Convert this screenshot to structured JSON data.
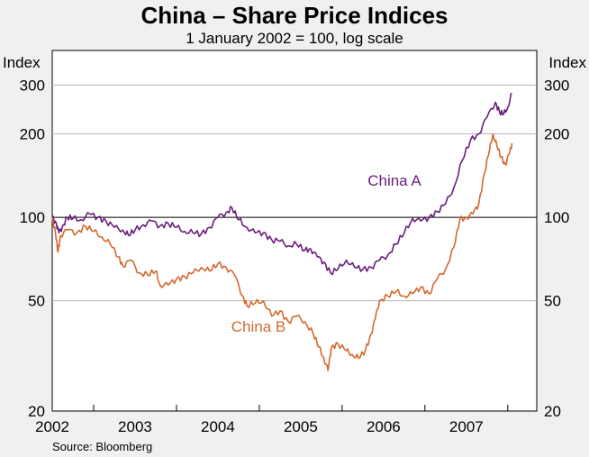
{
  "chart_data": {
    "type": "line",
    "title": "China – Share Price Indices",
    "subtitle": "1 January 2002 = 100, log scale",
    "ylabel_left": "Index",
    "ylabel_right": "Index",
    "yscale": "log",
    "ylim": [
      20,
      400
    ],
    "y_ticks": [
      20,
      50,
      100,
      200,
      300
    ],
    "xlim": [
      2002.0,
      2007.85
    ],
    "x_ticks": [
      "2002",
      "2003",
      "2004",
      "2005",
      "2006",
      "2007"
    ],
    "source": "Source: Bloomberg",
    "series": [
      {
        "name": "China A",
        "color": "#6a1f7a",
        "points": [
          [
            2002.0,
            100
          ],
          [
            2002.05,
            95
          ],
          [
            2002.08,
            88
          ],
          [
            2002.12,
            92
          ],
          [
            2002.18,
            100
          ],
          [
            2002.25,
            99
          ],
          [
            2002.35,
            98
          ],
          [
            2002.45,
            103
          ],
          [
            2002.55,
            100
          ],
          [
            2002.65,
            97
          ],
          [
            2002.75,
            92
          ],
          [
            2002.85,
            90
          ],
          [
            2002.92,
            86
          ],
          [
            2003.0,
            90
          ],
          [
            2003.1,
            94
          ],
          [
            2003.2,
            97
          ],
          [
            2003.3,
            93
          ],
          [
            2003.4,
            95
          ],
          [
            2003.5,
            92
          ],
          [
            2003.6,
            89
          ],
          [
            2003.7,
            88
          ],
          [
            2003.8,
            87
          ],
          [
            2003.9,
            92
          ],
          [
            2004.0,
            100
          ],
          [
            2004.1,
            104
          ],
          [
            2004.17,
            108
          ],
          [
            2004.25,
            98
          ],
          [
            2004.35,
            92
          ],
          [
            2004.45,
            88
          ],
          [
            2004.55,
            88
          ],
          [
            2004.65,
            83
          ],
          [
            2004.75,
            82
          ],
          [
            2004.85,
            79
          ],
          [
            2004.95,
            80
          ],
          [
            2005.05,
            76
          ],
          [
            2005.12,
            77
          ],
          [
            2005.2,
            72
          ],
          [
            2005.28,
            69
          ],
          [
            2005.36,
            63
          ],
          [
            2005.45,
            65
          ],
          [
            2005.55,
            70
          ],
          [
            2005.65,
            66
          ],
          [
            2005.75,
            65
          ],
          [
            2005.85,
            66
          ],
          [
            2005.95,
            70
          ],
          [
            2006.05,
            73
          ],
          [
            2006.15,
            80
          ],
          [
            2006.25,
            88
          ],
          [
            2006.35,
            99
          ],
          [
            2006.45,
            97
          ],
          [
            2006.55,
            100
          ],
          [
            2006.65,
            105
          ],
          [
            2006.75,
            112
          ],
          [
            2006.85,
            128
          ],
          [
            2006.95,
            160
          ],
          [
            2007.05,
            190
          ],
          [
            2007.15,
            200
          ],
          [
            2007.25,
            230
          ],
          [
            2007.35,
            260
          ],
          [
            2007.4,
            240
          ],
          [
            2007.45,
            235
          ],
          [
            2007.5,
            250
          ],
          [
            2007.55,
            280
          ]
        ]
      },
      {
        "name": "China B",
        "color": "#d4692e",
        "points": [
          [
            2002.0,
            100
          ],
          [
            2002.04,
            87
          ],
          [
            2002.07,
            75
          ],
          [
            2002.1,
            86
          ],
          [
            2002.18,
            90
          ],
          [
            2002.3,
            88
          ],
          [
            2002.4,
            93
          ],
          [
            2002.5,
            89
          ],
          [
            2002.6,
            85
          ],
          [
            2002.7,
            80
          ],
          [
            2002.8,
            72
          ],
          [
            2002.85,
            67
          ],
          [
            2002.95,
            70
          ],
          [
            2003.05,
            63
          ],
          [
            2003.15,
            62
          ],
          [
            2003.25,
            64
          ],
          [
            2003.3,
            57
          ],
          [
            2003.4,
            57
          ],
          [
            2003.5,
            60
          ],
          [
            2003.6,
            61
          ],
          [
            2003.7,
            63
          ],
          [
            2003.8,
            66
          ],
          [
            2003.9,
            64
          ],
          [
            2004.0,
            68
          ],
          [
            2004.1,
            66
          ],
          [
            2004.2,
            62
          ],
          [
            2004.3,
            52
          ],
          [
            2004.35,
            48
          ],
          [
            2004.45,
            49
          ],
          [
            2004.55,
            50
          ],
          [
            2004.65,
            44
          ],
          [
            2004.75,
            46
          ],
          [
            2004.85,
            42
          ],
          [
            2004.95,
            44
          ],
          [
            2005.05,
            42
          ],
          [
            2005.15,
            38
          ],
          [
            2005.22,
            34
          ],
          [
            2005.28,
            31
          ],
          [
            2005.33,
            28
          ],
          [
            2005.37,
            34
          ],
          [
            2005.45,
            35
          ],
          [
            2005.55,
            33
          ],
          [
            2005.62,
            32
          ],
          [
            2005.7,
            31
          ],
          [
            2005.78,
            33
          ],
          [
            2005.85,
            38
          ],
          [
            2005.9,
            43
          ],
          [
            2005.95,
            50
          ],
          [
            2006.05,
            52
          ],
          [
            2006.15,
            54
          ],
          [
            2006.25,
            52
          ],
          [
            2006.35,
            53
          ],
          [
            2006.45,
            56
          ],
          [
            2006.55,
            53
          ],
          [
            2006.65,
            60
          ],
          [
            2006.75,
            65
          ],
          [
            2006.85,
            78
          ],
          [
            2006.92,
            98
          ],
          [
            2007.0,
            100
          ],
          [
            2007.08,
            103
          ],
          [
            2007.15,
            112
          ],
          [
            2007.22,
            145
          ],
          [
            2007.28,
            175
          ],
          [
            2007.32,
            200
          ],
          [
            2007.37,
            180
          ],
          [
            2007.42,
            165
          ],
          [
            2007.47,
            155
          ],
          [
            2007.52,
            170
          ],
          [
            2007.55,
            185
          ]
        ]
      }
    ]
  }
}
